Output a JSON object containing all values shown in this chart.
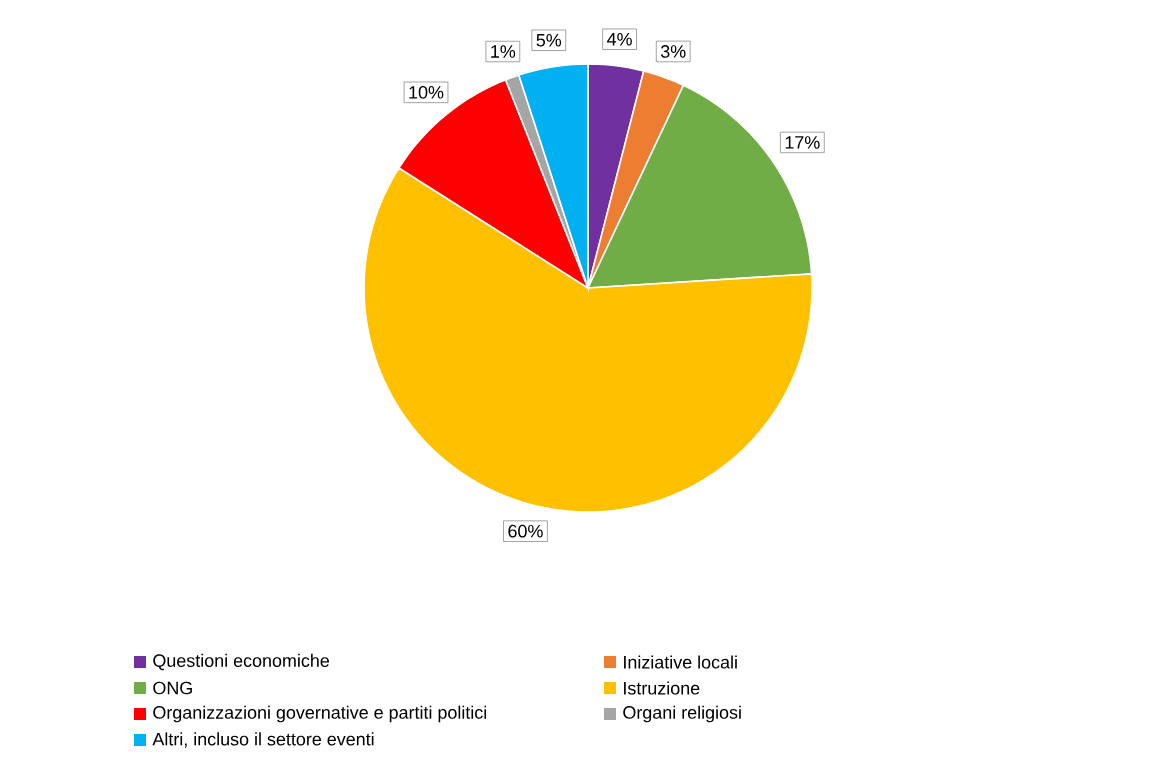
{
  "chart_data": {
    "type": "pie",
    "categories": [
      "Questioni economiche",
      "Iniziative locali",
      "ONG",
      "Istruzione",
      "Organizzazioni governative e partiti politici",
      "Organi religiosi",
      "Altri, incluso il settore eventi"
    ],
    "values": [
      4,
      3,
      17,
      60,
      10,
      1,
      5
    ],
    "colors": [
      "#7030a0",
      "#ed7d31",
      "#70ad47",
      "#ffc000",
      "#ff0000",
      "#a5a5a5",
      "#00b0f0"
    ],
    "value_labels": [
      "4%",
      "3%",
      "17%",
      "60%",
      "10%",
      "1%",
      "5%"
    ],
    "legend": "bottom"
  }
}
